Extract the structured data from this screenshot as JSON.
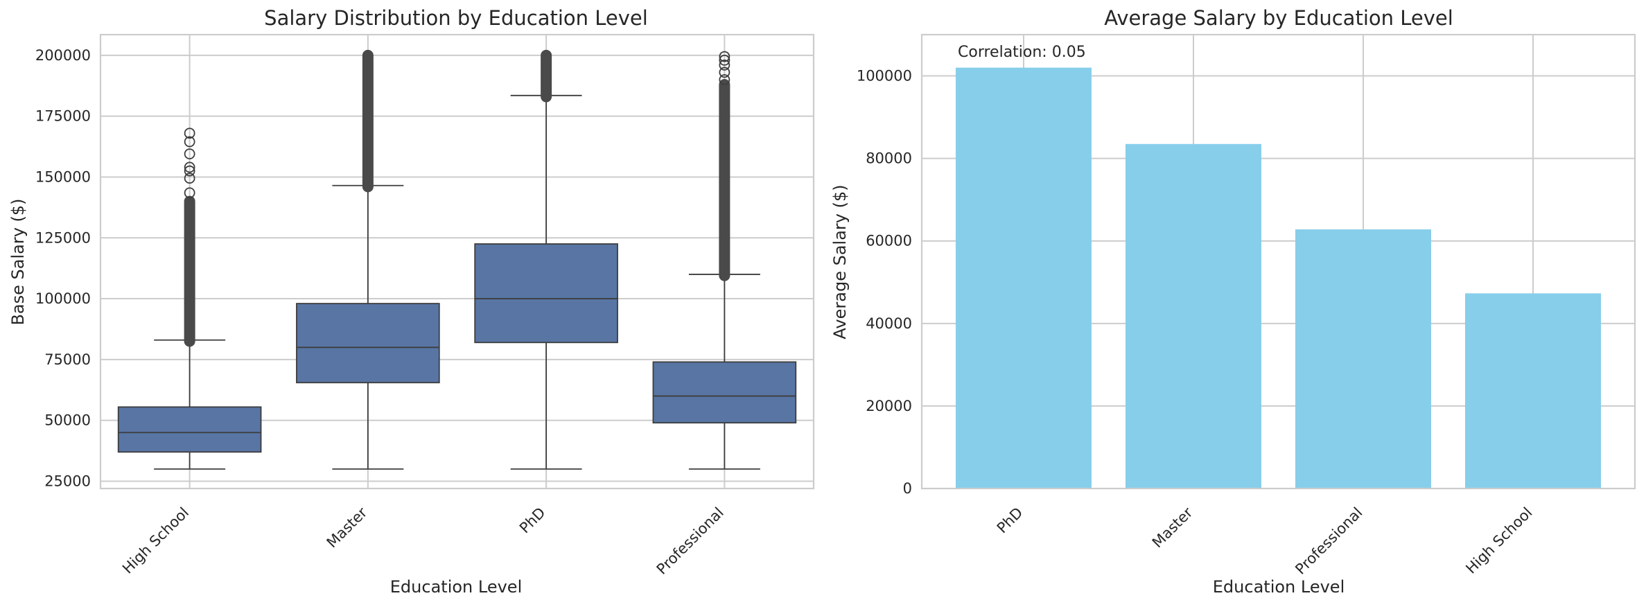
{
  "chart_data": [
    {
      "type": "box",
      "title": "Salary Distribution by Education Level",
      "xlabel": "Education Level",
      "ylabel": "Base Salary ($)",
      "categories": [
        "High School",
        "Master",
        "PhD",
        "Professional"
      ],
      "yticks": [
        25000,
        50000,
        75000,
        100000,
        125000,
        150000,
        175000,
        200000
      ],
      "ylim": [
        22000,
        208500
      ],
      "grid": true,
      "color": "#5875a4",
      "boxes": [
        {
          "category": "High School",
          "whislo": 30000,
          "q1": 37000,
          "median": 45000,
          "q3": 55500,
          "whishi": 83000,
          "dense_fliers": [
            82500,
            140000
          ],
          "fliers": [
            143500,
            149500,
            152500,
            154000,
            159500,
            164500,
            168000
          ]
        },
        {
          "category": "Master",
          "whislo": 30000,
          "q1": 65500,
          "median": 80000,
          "q3": 98000,
          "whishi": 146500,
          "dense_fliers": [
            146000,
            200000
          ],
          "fliers": []
        },
        {
          "category": "PhD",
          "whislo": 30000,
          "q1": 82000,
          "median": 100000,
          "q3": 122500,
          "whishi": 183500,
          "dense_fliers": [
            183000,
            200000
          ],
          "fliers": []
        },
        {
          "category": "Professional",
          "whislo": 30000,
          "q1": 49000,
          "median": 60000,
          "q3": 74000,
          "whishi": 110000,
          "dense_fliers": [
            109500,
            188000
          ],
          "fliers": [
            190000,
            193000,
            196000,
            198000,
            199500
          ]
        }
      ]
    },
    {
      "type": "bar",
      "title": "Average Salary by Education Level",
      "xlabel": "Education Level",
      "ylabel": "Average Salary ($)",
      "categories": [
        "PhD",
        "Master",
        "Professional",
        "High School"
      ],
      "values": [
        102000,
        83500,
        62800,
        47300
      ],
      "yticks": [
        0,
        20000,
        40000,
        60000,
        80000,
        100000
      ],
      "ylim": [
        0,
        110000
      ],
      "grid": true,
      "color": "#87ceeb",
      "annotation": "Correlation: 0.05"
    }
  ]
}
